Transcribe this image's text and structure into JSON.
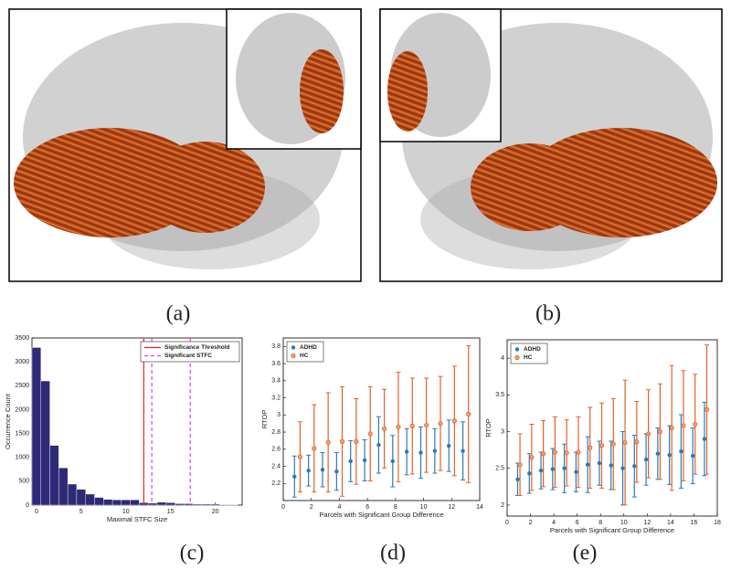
{
  "panel_labels": [
    "(a)",
    "(b)",
    "(c)",
    "(d)",
    "(e)"
  ],
  "chart_data": [
    {
      "type": "histogram",
      "x_label": "Maximal STFC Size",
      "y_label": "Occurrence Count",
      "color": "#2e2a78",
      "bins": [
        -0.5,
        0.5,
        1.5,
        2.5,
        3.5,
        4.5,
        5.5,
        6.5,
        7.5,
        8.5,
        9.5,
        10.5,
        11.5,
        12.5,
        13.5,
        14.5,
        15.5,
        16.5,
        17.5,
        18.5,
        19.5,
        20.5,
        21.5,
        22.5
      ],
      "values": [
        3300,
        2600,
        1250,
        780,
        440,
        330,
        230,
        160,
        120,
        110,
        110,
        110,
        50,
        40,
        60,
        50,
        30,
        30,
        20,
        20,
        20,
        10,
        10
      ],
      "xlim": [
        -0.5,
        23
      ],
      "xticks": [
        0,
        5,
        10,
        15,
        20
      ],
      "ylim": [
        0,
        3500
      ],
      "yticks": [
        0,
        500,
        1000,
        1500,
        2000,
        2500,
        3000,
        3500
      ],
      "reference_lines": [
        {
          "name": "Significance Threshold",
          "color": "#e8262a",
          "style": "solid",
          "x": [
            12
          ]
        },
        {
          "name": "Significant STFC",
          "color": "#e040e0",
          "style": "dashed",
          "x": [
            12.9,
            17.2
          ]
        }
      ],
      "legend": "upper right"
    },
    {
      "type": "errorbar",
      "x_label": "Parcels with Significant Group Difference",
      "y_label": "RTOP",
      "xlim": [
        0,
        14
      ],
      "xticks": [
        0,
        2,
        4,
        6,
        8,
        10,
        12,
        14
      ],
      "ylim": [
        2.0,
        3.9
      ],
      "yticks": [
        2.2,
        2.4,
        2.6,
        2.8,
        3,
        3.2,
        3.4,
        3.6,
        3.8
      ],
      "legend": "upper left",
      "series": [
        {
          "name": "ADHD",
          "color": "#2a7ab9",
          "marker": "filled",
          "x": [
            0.8,
            1.8,
            2.8,
            3.8,
            4.8,
            5.8,
            6.8,
            7.8,
            8.8,
            9.8,
            10.8,
            11.8,
            12.8
          ],
          "values": [
            2.28,
            2.35,
            2.36,
            2.34,
            2.46,
            2.47,
            2.65,
            2.46,
            2.57,
            2.56,
            2.58,
            2.64,
            2.58
          ],
          "errors": [
            0.24,
            0.18,
            0.2,
            0.22,
            0.24,
            0.24,
            0.33,
            0.3,
            0.27,
            0.3,
            0.26,
            0.3,
            0.34
          ]
        },
        {
          "name": "HC",
          "color": "#e0622a",
          "marker": "open",
          "x": [
            1.2,
            2.2,
            3.2,
            4.2,
            5.2,
            6.2,
            7.2,
            8.2,
            9.2,
            10.2,
            11.2,
            12.2,
            13.2
          ],
          "values": [
            2.51,
            2.61,
            2.68,
            2.69,
            2.69,
            2.78,
            2.84,
            2.86,
            2.87,
            2.88,
            2.9,
            2.93,
            3.01
          ],
          "errors": [
            0.41,
            0.51,
            0.58,
            0.64,
            0.5,
            0.55,
            0.46,
            0.64,
            0.56,
            0.55,
            0.55,
            0.64,
            0.8
          ]
        }
      ]
    },
    {
      "type": "errorbar",
      "x_label": "Parcels with Significant Group Difference",
      "y_label": "RTOP",
      "xlim": [
        0,
        18
      ],
      "xticks": [
        0,
        2,
        4,
        6,
        8,
        10,
        12,
        14,
        16,
        18
      ],
      "ylim": [
        1.85,
        4.25
      ],
      "yticks": [
        2,
        2.5,
        3,
        3.5,
        4
      ],
      "legend": "upper left",
      "series": [
        {
          "name": "ADHD",
          "color": "#2a7ab9",
          "marker": "filled",
          "x": [
            0.9,
            1.9,
            2.9,
            3.9,
            4.9,
            5.9,
            6.9,
            7.9,
            8.9,
            9.9,
            10.9,
            11.9,
            12.9,
            13.9,
            14.9,
            15.9,
            16.9
          ],
          "values": [
            2.35,
            2.43,
            2.47,
            2.49,
            2.5,
            2.45,
            2.55,
            2.57,
            2.54,
            2.5,
            2.53,
            2.62,
            2.7,
            2.68,
            2.73,
            2.67,
            2.9
          ],
          "errors": [
            0.22,
            0.27,
            0.25,
            0.28,
            0.33,
            0.27,
            0.38,
            0.3,
            0.33,
            0.5,
            0.42,
            0.35,
            0.35,
            0.4,
            0.5,
            0.38,
            0.5
          ]
        },
        {
          "name": "HC",
          "color": "#e0622a",
          "marker": "open",
          "x": [
            1.1,
            2.1,
            3.1,
            4.1,
            5.1,
            6.1,
            7.1,
            8.1,
            9.1,
            10.1,
            11.1,
            12.1,
            13.1,
            14.1,
            15.1,
            16.1,
            17.1
          ],
          "values": [
            2.55,
            2.65,
            2.7,
            2.72,
            2.71,
            2.72,
            2.78,
            2.81,
            2.83,
            2.85,
            2.86,
            2.97,
            3.0,
            3.05,
            3.08,
            3.1,
            3.3
          ],
          "errors": [
            0.42,
            0.45,
            0.45,
            0.48,
            0.45,
            0.48,
            0.55,
            0.58,
            0.62,
            0.85,
            0.55,
            0.6,
            0.65,
            0.85,
            0.75,
            0.68,
            0.88
          ]
        }
      ]
    }
  ]
}
